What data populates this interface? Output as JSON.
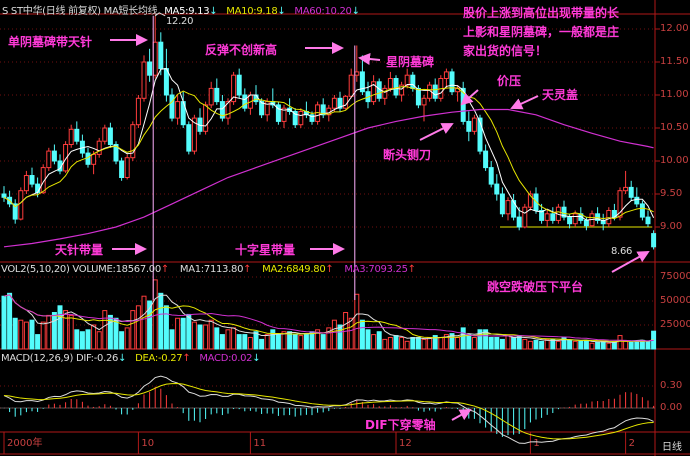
{
  "header": {
    "title": "S ST中华(日线 前复权) MA短长均线",
    "ma5": "MA5:9.13",
    "ma10": "MA10:9.18",
    "ma60": "MA60:10.20",
    "high_label": "12.20",
    "low_label": "8.66"
  },
  "volume_header": {
    "title": "VOL2(5,10,20) VOLUME:18567.00",
    "ma1": "MA1:7113.80",
    "ma2": "MA2:6849.80",
    "ma3": "MA3:7093.25"
  },
  "macd_header": {
    "title": "MACD(12,26,9)",
    "dif": "DIF:-0.26",
    "dea": "DEA:-0.27",
    "macd": "MACD:0.02"
  },
  "annotations": {
    "a1": "单阴墓碑带天针",
    "a2": "反弹不创新高",
    "a3": "星阴墓碑",
    "a4": "股价上涨到高位出现带量的长上影和星阴墓碑，一般都是庄家出货的信号！",
    "a5": "价压",
    "a6": "天灵盖",
    "a7": "断头铡刀",
    "a8": "天针带量",
    "a9": "十字星带量",
    "a10": "跳空跌破压下平台",
    "a11": "DIF下穿零轴"
  },
  "footer": {
    "period": "日线"
  },
  "colors": {
    "up": "#ff3c3c",
    "down": "#54fcfc",
    "ma5": "#ffffff",
    "ma10": "#e6e600",
    "ma60": "#d030d0",
    "annotation": "#ff3ad8",
    "axis": "#c84040"
  },
  "chart_data": {
    "type": "candlestick",
    "price_axis": {
      "ticks": [
        "12.00",
        "11.50",
        "11.00",
        "10.50",
        "10.00",
        "9.50",
        "9.00"
      ],
      "range": [
        8.55,
        12.3
      ]
    },
    "volume_axis": {
      "ticks": [
        "75000",
        "50000",
        "25000"
      ]
    },
    "macd_axis": {
      "ticks": [
        "0.30",
        "0.00"
      ]
    },
    "date_ticks": [
      {
        "label": "2000年",
        "index": 0
      },
      {
        "label": "10",
        "index": 24
      },
      {
        "label": "11",
        "index": 44
      },
      {
        "label": "12",
        "index": 70
      },
      {
        "label": "1",
        "index": 94
      },
      {
        "label": "2",
        "index": 111
      }
    ],
    "platform_price": 9.0,
    "candles": [
      [
        9.5,
        9.62,
        9.38,
        9.45
      ],
      [
        9.45,
        9.55,
        9.3,
        9.35
      ],
      [
        9.35,
        9.42,
        9.05,
        9.12
      ],
      [
        9.12,
        9.6,
        9.1,
        9.55
      ],
      [
        9.55,
        9.85,
        9.5,
        9.78
      ],
      [
        9.78,
        9.9,
        9.6,
        9.65
      ],
      [
        9.65,
        9.75,
        9.45,
        9.52
      ],
      [
        9.52,
        9.95,
        9.5,
        9.9
      ],
      [
        9.9,
        10.2,
        9.85,
        10.15
      ],
      [
        10.15,
        10.25,
        9.95,
        10.0
      ],
      [
        10.0,
        10.1,
        9.8,
        9.85
      ],
      [
        9.85,
        10.3,
        9.82,
        10.25
      ],
      [
        10.25,
        10.55,
        10.2,
        10.48
      ],
      [
        10.48,
        10.6,
        10.25,
        10.3
      ],
      [
        10.3,
        10.4,
        10.05,
        10.12
      ],
      [
        10.12,
        10.2,
        9.9,
        9.95
      ],
      [
        9.95,
        10.15,
        9.8,
        10.1
      ],
      [
        10.1,
        10.35,
        10.05,
        10.3
      ],
      [
        10.3,
        10.55,
        10.25,
        10.5
      ],
      [
        10.5,
        10.58,
        10.2,
        10.25
      ],
      [
        10.25,
        10.3,
        9.95,
        10.0
      ],
      [
        10.0,
        10.05,
        9.7,
        9.75
      ],
      [
        9.75,
        10.1,
        9.72,
        10.05
      ],
      [
        10.05,
        10.6,
        10.0,
        10.55
      ],
      [
        10.55,
        11.0,
        10.5,
        10.95
      ],
      [
        10.95,
        11.6,
        10.9,
        11.5
      ],
      [
        11.5,
        11.7,
        11.2,
        11.3
      ],
      [
        11.3,
        12.2,
        11.25,
        11.8
      ],
      [
        11.8,
        11.95,
        11.3,
        11.4
      ],
      [
        11.4,
        11.7,
        10.9,
        11.0
      ],
      [
        11.0,
        11.1,
        10.6,
        10.65
      ],
      [
        10.65,
        11.0,
        10.55,
        10.9
      ],
      [
        10.9,
        11.05,
        10.5,
        10.55
      ],
      [
        10.55,
        10.6,
        10.1,
        10.15
      ],
      [
        10.15,
        10.7,
        10.1,
        10.65
      ],
      [
        10.65,
        10.8,
        10.4,
        10.45
      ],
      [
        10.45,
        10.9,
        10.4,
        10.85
      ],
      [
        10.85,
        11.2,
        10.8,
        11.1
      ],
      [
        11.1,
        11.25,
        10.85,
        10.9
      ],
      [
        10.9,
        11.0,
        10.6,
        10.65
      ],
      [
        10.65,
        10.95,
        10.55,
        10.9
      ],
      [
        10.9,
        11.35,
        10.85,
        11.3
      ],
      [
        11.3,
        11.4,
        10.95,
        11.0
      ],
      [
        11.0,
        11.1,
        10.75,
        10.8
      ],
      [
        10.8,
        11.05,
        10.7,
        11.0
      ],
      [
        11.0,
        11.15,
        10.85,
        10.9
      ],
      [
        10.9,
        10.95,
        10.65,
        10.7
      ],
      [
        10.7,
        10.95,
        10.6,
        10.9
      ],
      [
        10.9,
        11.1,
        10.8,
        10.85
      ],
      [
        10.85,
        10.9,
        10.55,
        10.6
      ],
      [
        10.6,
        10.85,
        10.5,
        10.8
      ],
      [
        10.8,
        10.95,
        10.7,
        10.75
      ],
      [
        10.75,
        10.8,
        10.5,
        10.55
      ],
      [
        10.55,
        10.8,
        10.5,
        10.75
      ],
      [
        10.75,
        10.9,
        10.65,
        10.7
      ],
      [
        10.7,
        10.75,
        10.55,
        10.6
      ],
      [
        10.6,
        10.9,
        10.55,
        10.85
      ],
      [
        10.85,
        10.95,
        10.65,
        10.7
      ],
      [
        10.7,
        10.85,
        10.6,
        10.8
      ],
      [
        10.8,
        11.0,
        10.75,
        10.95
      ],
      [
        10.95,
        11.05,
        10.75,
        10.8
      ],
      [
        10.8,
        11.0,
        10.78,
        10.98
      ],
      [
        10.98,
        11.4,
        10.95,
        11.3
      ],
      [
        11.3,
        11.75,
        11.2,
        11.35
      ],
      [
        11.35,
        11.6,
        11.0,
        11.05
      ],
      [
        11.05,
        11.2,
        10.8,
        10.9
      ],
      [
        10.9,
        11.3,
        10.85,
        11.2
      ],
      [
        11.2,
        11.25,
        10.9,
        10.95
      ],
      [
        10.95,
        11.15,
        10.85,
        11.1
      ],
      [
        11.1,
        11.35,
        11.05,
        11.25
      ],
      [
        11.25,
        11.3,
        10.95,
        11.0
      ],
      [
        11.0,
        11.2,
        10.9,
        11.15
      ],
      [
        11.15,
        11.4,
        11.1,
        11.3
      ],
      [
        11.3,
        11.35,
        11.05,
        11.1
      ],
      [
        11.1,
        11.15,
        10.8,
        10.85
      ],
      [
        10.85,
        11.0,
        10.6,
        10.95
      ],
      [
        10.95,
        11.2,
        10.9,
        11.15
      ],
      [
        11.15,
        11.25,
        10.9,
        10.95
      ],
      [
        10.95,
        11.3,
        10.9,
        11.25
      ],
      [
        11.25,
        11.4,
        11.1,
        11.35
      ],
      [
        11.35,
        11.4,
        11.0,
        11.05
      ],
      [
        11.05,
        11.15,
        10.9,
        11.1
      ],
      [
        11.1,
        11.2,
        10.55,
        10.6
      ],
      [
        10.6,
        10.75,
        10.3,
        10.45
      ],
      [
        10.45,
        10.7,
        10.4,
        10.65
      ],
      [
        10.65,
        10.7,
        10.1,
        10.15
      ],
      [
        10.15,
        10.25,
        9.85,
        9.9
      ],
      [
        9.9,
        10.0,
        9.6,
        9.65
      ],
      [
        9.65,
        9.8,
        9.4,
        9.5
      ],
      [
        9.5,
        9.6,
        9.15,
        9.2
      ],
      [
        9.2,
        9.45,
        9.1,
        9.4
      ],
      [
        9.4,
        9.5,
        9.1,
        9.15
      ],
      [
        9.15,
        9.3,
        8.95,
        9.0
      ],
      [
        9.0,
        9.35,
        8.98,
        9.3
      ],
      [
        9.3,
        9.55,
        9.25,
        9.5
      ],
      [
        9.5,
        9.6,
        9.2,
        9.25
      ],
      [
        9.25,
        9.35,
        9.05,
        9.1
      ],
      [
        9.1,
        9.25,
        9.0,
        9.2
      ],
      [
        9.2,
        9.3,
        9.05,
        9.1
      ],
      [
        9.1,
        9.35,
        9.05,
        9.3
      ],
      [
        9.3,
        9.4,
        9.1,
        9.15
      ],
      [
        9.15,
        9.2,
        8.98,
        9.05
      ],
      [
        9.05,
        9.25,
        9.0,
        9.2
      ],
      [
        9.2,
        9.3,
        9.05,
        9.1
      ],
      [
        9.1,
        9.15,
        8.95,
        9.02
      ],
      [
        9.02,
        9.25,
        9.0,
        9.2
      ],
      [
        9.2,
        9.3,
        9.05,
        9.1
      ],
      [
        9.1,
        9.2,
        8.95,
        9.05
      ],
      [
        9.05,
        9.3,
        9.0,
        9.25
      ],
      [
        9.25,
        9.35,
        9.1,
        9.15
      ],
      [
        9.15,
        9.6,
        9.1,
        9.55
      ],
      [
        9.55,
        9.85,
        9.5,
        9.6
      ],
      [
        9.6,
        9.7,
        9.4,
        9.45
      ],
      [
        9.45,
        9.6,
        9.3,
        9.35
      ],
      [
        9.35,
        9.4,
        9.1,
        9.15
      ],
      [
        9.15,
        9.25,
        9.0,
        9.05
      ],
      [
        8.9,
        8.95,
        8.66,
        8.7
      ]
    ],
    "ma60_points": [
      [
        0,
        8.7
      ],
      [
        5,
        8.75
      ],
      [
        10,
        8.82
      ],
      [
        15,
        8.9
      ],
      [
        20,
        9.0
      ],
      [
        25,
        9.15
      ],
      [
        30,
        9.35
      ],
      [
        35,
        9.55
      ],
      [
        40,
        9.75
      ],
      [
        45,
        9.9
      ],
      [
        50,
        10.05
      ],
      [
        55,
        10.2
      ],
      [
        60,
        10.35
      ],
      [
        65,
        10.5
      ],
      [
        70,
        10.6
      ],
      [
        75,
        10.68
      ],
      [
        80,
        10.74
      ],
      [
        85,
        10.78
      ],
      [
        90,
        10.78
      ],
      [
        95,
        10.7
      ],
      [
        100,
        10.55
      ],
      [
        105,
        10.42
      ],
      [
        110,
        10.3
      ],
      [
        115,
        10.22
      ],
      [
        116,
        10.2
      ]
    ],
    "volume": [
      55000,
      58000,
      32000,
      30000,
      28000,
      30000,
      15000,
      28000,
      35000,
      38000,
      45000,
      40000,
      35000,
      20000,
      18000,
      20000,
      25000,
      18000,
      40000,
      35000,
      32000,
      18000,
      22000,
      40000,
      45000,
      55000,
      50000,
      72000,
      58000,
      45000,
      20000,
      32000,
      32000,
      36000,
      28000,
      25000,
      25000,
      30000,
      22000,
      15000,
      20000,
      22000,
      15000,
      15000,
      12000,
      18000,
      10000,
      15000,
      20000,
      15000,
      18000,
      18000,
      15000,
      14000,
      16000,
      18000,
      20000,
      15000,
      22000,
      30000,
      25000,
      38000,
      32000,
      57000,
      30000,
      20000,
      15000,
      18000,
      10000,
      12000,
      14000,
      12000,
      8000,
      12000,
      12000,
      10000,
      12000,
      14000,
      12000,
      15000,
      16000,
      12000,
      22000,
      15000,
      12000,
      20000,
      20000,
      12000,
      12000,
      10000,
      14000,
      12000,
      14000,
      10000,
      8000,
      9000,
      8000,
      10000,
      10000,
      8000,
      12000,
      9000,
      8000,
      8000,
      9000,
      6000,
      7000,
      8000,
      6000,
      7000,
      14000,
      8000,
      7000,
      8000,
      9000,
      8000,
      18567
    ]
  }
}
